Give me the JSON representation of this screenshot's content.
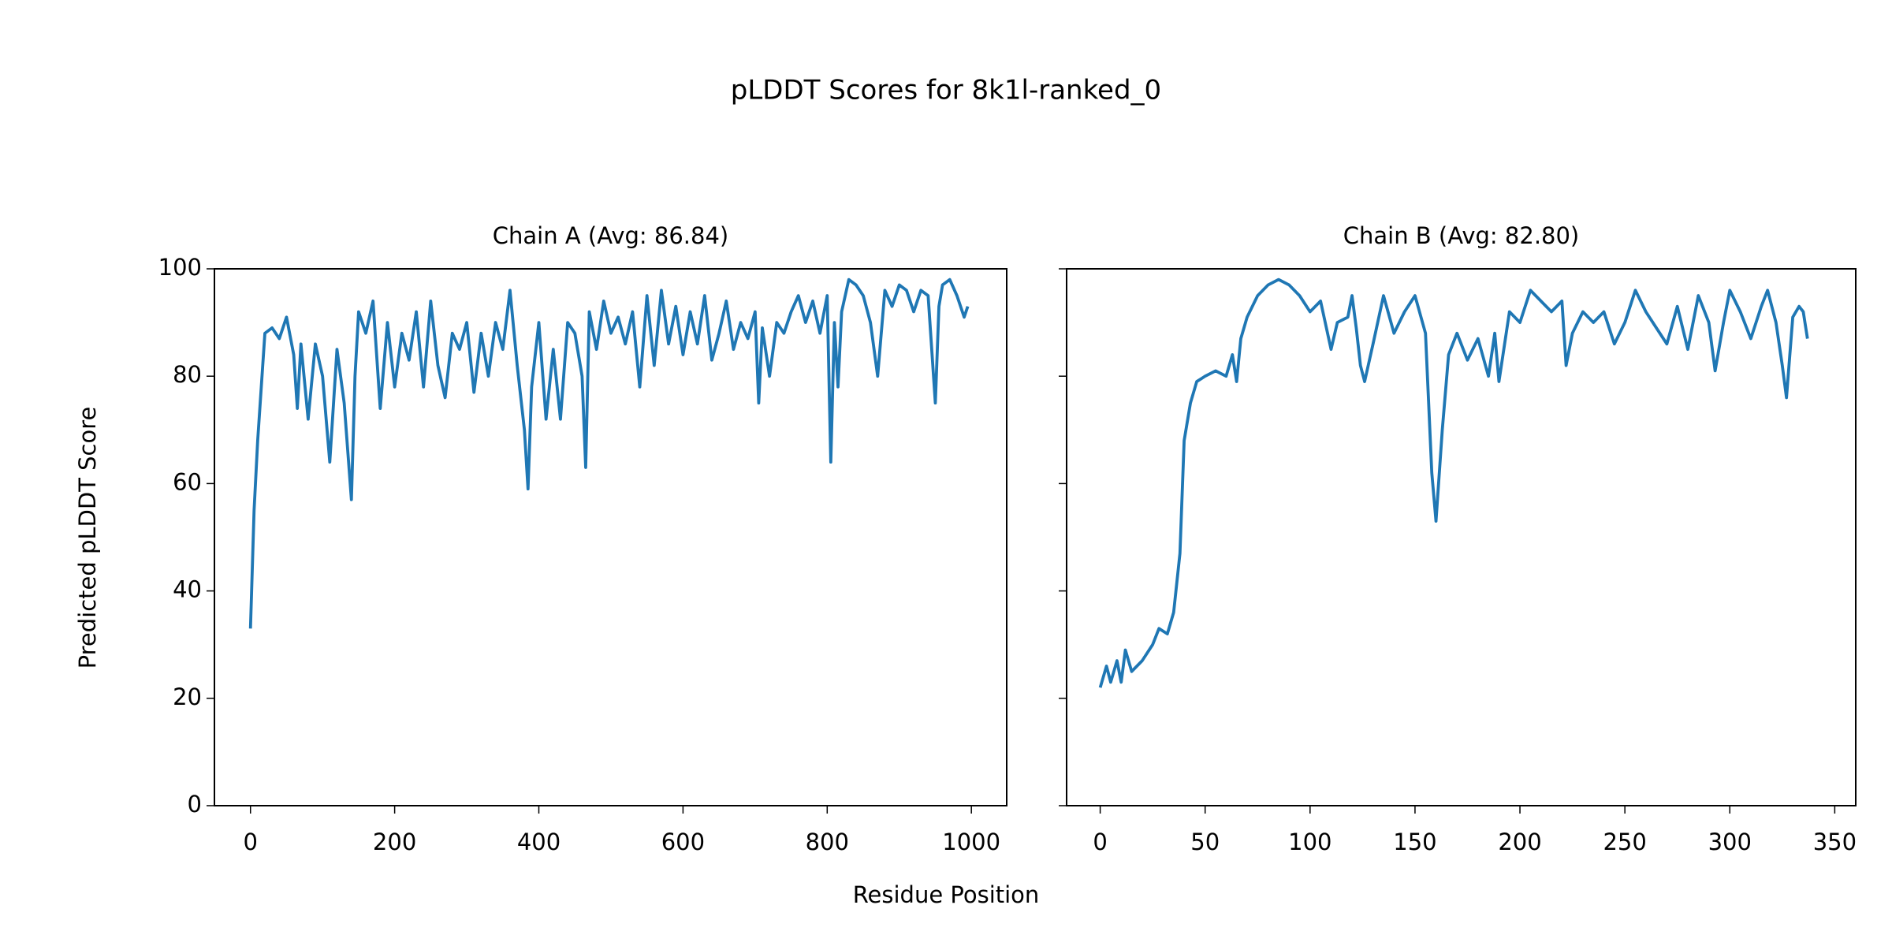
{
  "title": "pLDDT Scores for 8k1l-ranked_0",
  "xlabel": "Residue Position",
  "ylabel": "Predicted pLDDT Score",
  "chart_data": [
    {
      "type": "line",
      "title": "Chain A (Avg: 86.84)",
      "color": "#1f77b4",
      "x": [
        0,
        5,
        10,
        20,
        30,
        40,
        50,
        60,
        65,
        70,
        80,
        90,
        100,
        110,
        120,
        130,
        140,
        145,
        150,
        160,
        170,
        180,
        190,
        200,
        210,
        220,
        230,
        240,
        250,
        260,
        270,
        280,
        290,
        300,
        310,
        320,
        330,
        340,
        350,
        360,
        370,
        380,
        385,
        390,
        400,
        410,
        420,
        430,
        440,
        450,
        460,
        465,
        470,
        480,
        490,
        500,
        510,
        520,
        530,
        540,
        550,
        560,
        570,
        580,
        590,
        600,
        610,
        620,
        630,
        640,
        650,
        660,
        670,
        680,
        690,
        700,
        705,
        710,
        720,
        730,
        740,
        750,
        760,
        770,
        780,
        790,
        800,
        805,
        810,
        815,
        820,
        830,
        840,
        850,
        860,
        870,
        880,
        890,
        900,
        910,
        920,
        930,
        940,
        950,
        955,
        960,
        970,
        980,
        990,
        995
      ],
      "values": [
        33,
        55,
        68,
        88,
        89,
        87,
        91,
        84,
        74,
        86,
        72,
        86,
        80,
        64,
        85,
        75,
        57,
        80,
        92,
        88,
        94,
        74,
        90,
        78,
        88,
        83,
        92,
        78,
        94,
        82,
        76,
        88,
        85,
        90,
        77,
        88,
        80,
        90,
        85,
        96,
        82,
        70,
        59,
        78,
        90,
        72,
        85,
        72,
        90,
        88,
        80,
        63,
        92,
        85,
        94,
        88,
        91,
        86,
        92,
        78,
        95,
        82,
        96,
        86,
        93,
        84,
        92,
        86,
        95,
        83,
        88,
        94,
        85,
        90,
        87,
        92,
        75,
        89,
        80,
        90,
        88,
        92,
        95,
        90,
        94,
        88,
        95,
        64,
        90,
        78,
        92,
        98,
        97,
        95,
        90,
        80,
        96,
        93,
        97,
        96,
        92,
        96,
        95,
        75,
        93,
        97,
        98,
        95,
        91,
        93
      ],
      "xlim": [
        -50,
        1049
      ],
      "xticks": [
        0,
        200,
        400,
        600,
        800,
        1000
      ],
      "ylim": [
        0,
        100
      ],
      "yticks": [
        0,
        20,
        40,
        60,
        80,
        100
      ],
      "show_ytick_labels": true
    },
    {
      "type": "line",
      "title": "Chain B (Avg: 82.80)",
      "color": "#1f77b4",
      "x": [
        0,
        3,
        5,
        8,
        10,
        12,
        15,
        20,
        25,
        28,
        32,
        35,
        38,
        40,
        43,
        46,
        50,
        55,
        60,
        63,
        65,
        67,
        70,
        75,
        80,
        85,
        90,
        95,
        100,
        105,
        110,
        113,
        118,
        120,
        122,
        124,
        126,
        130,
        135,
        140,
        145,
        150,
        155,
        158,
        160,
        163,
        166,
        170,
        175,
        180,
        185,
        188,
        190,
        195,
        200,
        205,
        210,
        215,
        220,
        222,
        225,
        230,
        235,
        240,
        245,
        250,
        255,
        260,
        265,
        270,
        275,
        280,
        285,
        290,
        293,
        297,
        300,
        305,
        310,
        315,
        318,
        322,
        325,
        327,
        330,
        333,
        335,
        337
      ],
      "values": [
        22,
        26,
        23,
        27,
        23,
        29,
        25,
        27,
        30,
        33,
        32,
        36,
        47,
        68,
        75,
        79,
        80,
        81,
        80,
        84,
        79,
        87,
        91,
        95,
        97,
        98,
        97,
        95,
        92,
        94,
        85,
        90,
        91,
        95,
        89,
        82,
        79,
        86,
        95,
        88,
        92,
        95,
        88,
        62,
        53,
        70,
        84,
        88,
        83,
        87,
        80,
        88,
        79,
        92,
        90,
        96,
        94,
        92,
        94,
        82,
        88,
        92,
        90,
        92,
        86,
        90,
        96,
        92,
        89,
        86,
        93,
        85,
        95,
        90,
        81,
        90,
        96,
        92,
        87,
        93,
        96,
        90,
        82,
        76,
        91,
        93,
        92,
        87
      ],
      "xlim": [
        -16,
        360
      ],
      "xticks": [
        0,
        50,
        100,
        150,
        200,
        250,
        300,
        350
      ],
      "ylim": [
        0,
        100
      ],
      "yticks": [
        0,
        20,
        40,
        60,
        80,
        100
      ],
      "show_ytick_labels": false
    }
  ]
}
